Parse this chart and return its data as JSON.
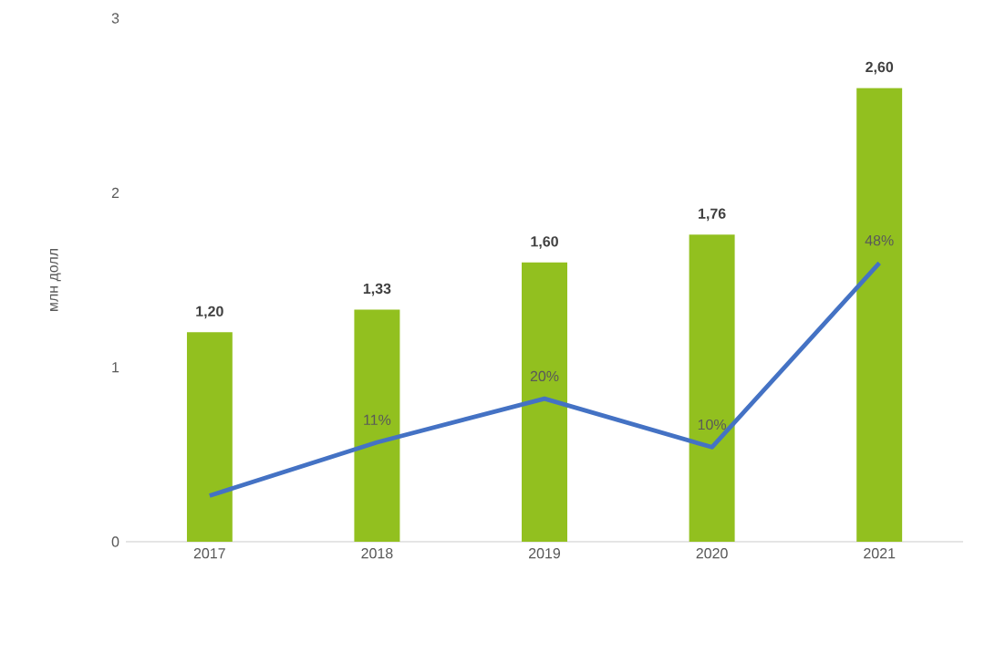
{
  "chart_data": {
    "type": "bar",
    "ylabel": "млн долл",
    "categories": [
      "2017",
      "2018",
      "2019",
      "2020",
      "2021"
    ],
    "series": [
      {
        "color": "#92c01f",
        "values": [
          1.2,
          1.33,
          1.6,
          1.76,
          2.6
        ],
        "value_labels": [
          "1,20",
          "1,33",
          "1,60",
          "1,76",
          "2,60"
        ]
      },
      {
        "type": "line",
        "axis": "y2",
        "color": "#4472c4",
        "values": [
          0,
          11,
          20,
          10,
          48
        ],
        "value_labels": [
          null,
          "11%",
          "20%",
          "10%",
          "48%"
        ]
      }
    ],
    "ylim": [
      0,
      3
    ],
    "yticks": [
      0,
      1,
      2,
      3
    ]
  }
}
